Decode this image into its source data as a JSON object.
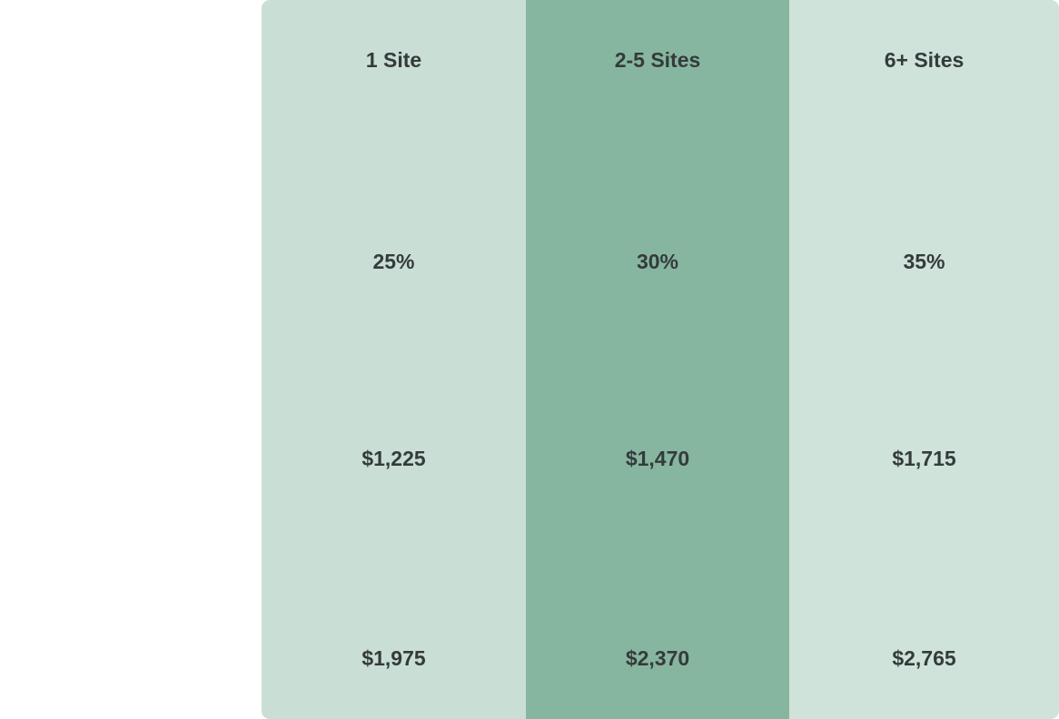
{
  "table": {
    "headers": [
      "1 Site",
      "2-5 Sites",
      "6+ Sites"
    ],
    "rows": [
      [
        "25%",
        "30%",
        "35%"
      ],
      [
        "$1,225",
        "$1,470",
        "$1,715"
      ],
      [
        "$1,975",
        "$2,370",
        "$2,765"
      ]
    ]
  }
}
